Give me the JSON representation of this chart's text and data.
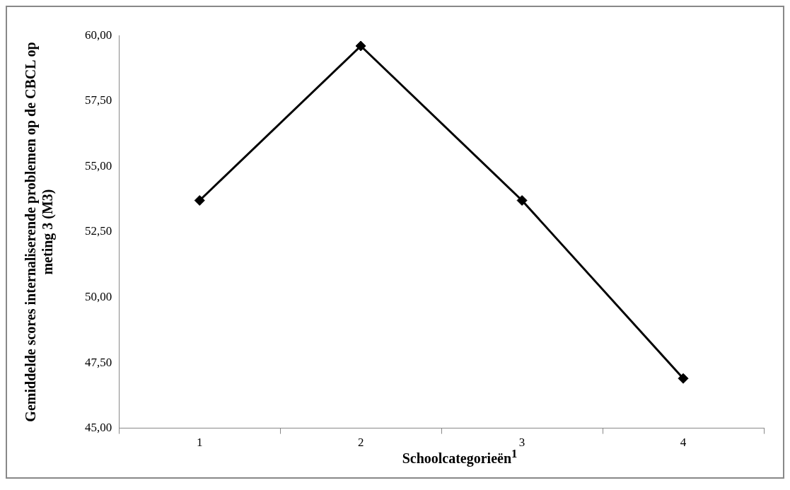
{
  "chart_data": {
    "type": "line",
    "xlabel": "Schoolcategorieën$^{1}$",
    "ylabel": "Gemiddelde scores internaliserende problemen op de CBCL op meting 3 (M3)",
    "categories": [
      "1",
      "2",
      "3",
      "4"
    ],
    "series": [
      {
        "color": "#000000",
        "values": [
          53.7,
          59.6,
          53.7,
          46.9
        ]
      }
    ],
    "ylim": [
      45,
      60
    ],
    "yticks": [
      {
        "value": 45,
        "label": "45,00"
      },
      {
        "value": 47.5,
        "label": "47,50"
      },
      {
        "value": 50,
        "label": "50,00"
      },
      {
        "value": 52.5,
        "label": "52,50"
      },
      {
        "value": 55,
        "label": "55,00"
      },
      {
        "value": 57.5,
        "label": "57,50"
      },
      {
        "value": 60,
        "label": "60,00"
      }
    ],
    "marker": "diamond",
    "line_style": "solid"
  }
}
